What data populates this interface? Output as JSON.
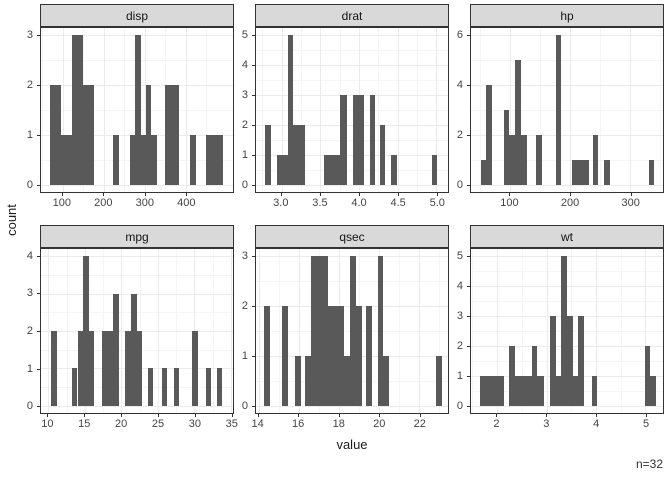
{
  "meta": {
    "ylabel": "count",
    "xlabel": "value",
    "n_label": "n=32"
  },
  "colors": {
    "bar": "#595959",
    "strip_bg": "#D9D9D9",
    "border": "#333333",
    "grid_major": "#EBEBEB",
    "grid_minor": "#F5F5F5",
    "axis_text": "#444444",
    "title_text": "#1a1a1a"
  },
  "chart_data": [
    {
      "type": "bar",
      "title": "disp",
      "xlim": [
        47.5,
        515
      ],
      "ylim": [
        -0.15,
        3.15
      ],
      "x_ticks": [
        100,
        200,
        300,
        400
      ],
      "x_tick_labels": [
        "100",
        "200",
        "300",
        "400"
      ],
      "x_minor": [
        50,
        150,
        250,
        350,
        450
      ],
      "y_ticks": [
        0,
        1,
        2,
        3
      ],
      "y_tick_labels": [
        "0",
        "1",
        "2",
        "3"
      ],
      "y_minor": [
        0.5,
        1.5,
        2.5
      ],
      "bars": [
        {
          "x0": 69,
          "x1": 96,
          "count": 2
        },
        {
          "x0": 96,
          "x1": 123,
          "count": 1
        },
        {
          "x0": 123,
          "x1": 150,
          "count": 3
        },
        {
          "x0": 150,
          "x1": 177,
          "count": 2
        },
        {
          "x0": 223,
          "x1": 237,
          "count": 1
        },
        {
          "x0": 263,
          "x1": 276,
          "count": 1
        },
        {
          "x0": 276,
          "x1": 290,
          "count": 3
        },
        {
          "x0": 290,
          "x1": 303,
          "count": 1
        },
        {
          "x0": 303,
          "x1": 316,
          "count": 2
        },
        {
          "x0": 316,
          "x1": 329,
          "count": 1
        },
        {
          "x0": 350,
          "x1": 383,
          "count": 2
        },
        {
          "x0": 411,
          "x1": 424,
          "count": 1
        },
        {
          "x0": 450,
          "x1": 490,
          "count": 1
        }
      ]
    },
    {
      "type": "bar",
      "title": "drat",
      "xlim": [
        2.67,
        5.15
      ],
      "ylim": [
        -0.25,
        5.25
      ],
      "x_ticks": [
        3.0,
        3.5,
        4.0,
        4.5,
        5.0
      ],
      "x_tick_labels": [
        "3.0",
        "3.5",
        "4.0",
        "4.5",
        "5.0"
      ],
      "x_minor": [
        2.75,
        3.25,
        3.75,
        4.25,
        4.75
      ],
      "y_ticks": [
        0,
        1,
        2,
        3,
        4,
        5
      ],
      "y_tick_labels": [
        "0",
        "1",
        "2",
        "3",
        "4",
        "5"
      ],
      "y_minor": [
        0.5,
        1.5,
        2.5,
        3.5,
        4.5
      ],
      "bars": [
        {
          "x0": 2.78,
          "x1": 2.86,
          "count": 2
        },
        {
          "x0": 2.94,
          "x1": 3.08,
          "count": 1
        },
        {
          "x0": 3.08,
          "x1": 3.15,
          "count": 5
        },
        {
          "x0": 3.15,
          "x1": 3.3,
          "count": 2
        },
        {
          "x0": 3.55,
          "x1": 3.76,
          "count": 1
        },
        {
          "x0": 3.76,
          "x1": 3.84,
          "count": 3
        },
        {
          "x0": 3.92,
          "x1": 4.07,
          "count": 3
        },
        {
          "x0": 4.14,
          "x1": 4.21,
          "count": 3
        },
        {
          "x0": 4.27,
          "x1": 4.34,
          "count": 2
        },
        {
          "x0": 4.42,
          "x1": 4.49,
          "count": 1
        },
        {
          "x0": 4.94,
          "x1": 5.01,
          "count": 1
        }
      ]
    },
    {
      "type": "bar",
      "title": "hp",
      "xlim": [
        35,
        355
      ],
      "ylim": [
        -0.3,
        6.3
      ],
      "x_ticks": [
        100,
        200,
        300
      ],
      "x_tick_labels": [
        "100",
        "200",
        "300"
      ],
      "x_minor": [
        50,
        150,
        250,
        350
      ],
      "y_ticks": [
        0,
        2,
        4,
        6
      ],
      "y_tick_labels": [
        "0",
        "2",
        "4",
        "6"
      ],
      "y_minor": [
        1,
        3,
        5
      ],
      "bars": [
        {
          "x0": 51,
          "x1": 60.5,
          "count": 1
        },
        {
          "x0": 60.5,
          "x1": 70,
          "count": 4
        },
        {
          "x0": 89.5,
          "x1": 99,
          "count": 3
        },
        {
          "x0": 99,
          "x1": 108.5,
          "count": 2
        },
        {
          "x0": 108.5,
          "x1": 118,
          "count": 5
        },
        {
          "x0": 118,
          "x1": 128,
          "count": 2
        },
        {
          "x0": 144,
          "x1": 153.5,
          "count": 2
        },
        {
          "x0": 176,
          "x1": 185.5,
          "count": 6
        },
        {
          "x0": 203,
          "x1": 231,
          "count": 1
        },
        {
          "x0": 238,
          "x1": 247.5,
          "count": 2
        },
        {
          "x0": 257,
          "x1": 266.5,
          "count": 1
        },
        {
          "x0": 331,
          "x1": 340.5,
          "count": 1
        }
      ]
    },
    {
      "type": "bar",
      "title": "mpg",
      "xlim": [
        9.0,
        35.3
      ],
      "ylim": [
        -0.2,
        4.2
      ],
      "x_ticks": [
        10,
        15,
        20,
        25,
        30,
        35
      ],
      "x_tick_labels": [
        "10",
        "15",
        "20",
        "25",
        "30",
        "35"
      ],
      "x_minor": [
        12.5,
        17.5,
        22.5,
        27.5,
        32.5
      ],
      "y_ticks": [
        0,
        1,
        2,
        3,
        4
      ],
      "y_tick_labels": [
        "0",
        "1",
        "2",
        "3",
        "4"
      ],
      "y_minor": [
        0.5,
        1.5,
        2.5,
        3.5
      ],
      "bars": [
        {
          "x0": 10.37,
          "x1": 11.14,
          "count": 2
        },
        {
          "x0": 13.23,
          "x1": 14.0,
          "count": 1
        },
        {
          "x0": 14.0,
          "x1": 14.77,
          "count": 2
        },
        {
          "x0": 14.77,
          "x1": 15.55,
          "count": 4
        },
        {
          "x0": 15.55,
          "x1": 16.32,
          "count": 2
        },
        {
          "x0": 17.3,
          "x1": 18.85,
          "count": 2
        },
        {
          "x0": 18.85,
          "x1": 19.7,
          "count": 3
        },
        {
          "x0": 20.45,
          "x1": 21.35,
          "count": 2
        },
        {
          "x0": 21.35,
          "x1": 22.1,
          "count": 3
        },
        {
          "x0": 22.1,
          "x1": 22.85,
          "count": 2
        },
        {
          "x0": 23.6,
          "x1": 24.35,
          "count": 1
        },
        {
          "x0": 25.55,
          "x1": 26.3,
          "count": 1
        },
        {
          "x0": 27.15,
          "x1": 27.9,
          "count": 1
        },
        {
          "x0": 29.7,
          "x1": 30.5,
          "count": 2
        },
        {
          "x0": 31.55,
          "x1": 32.3,
          "count": 1
        },
        {
          "x0": 33.1,
          "x1": 33.85,
          "count": 1
        }
      ]
    },
    {
      "type": "bar",
      "title": "qsec",
      "xlim": [
        13.87,
        23.44
      ],
      "ylim": [
        -0.15,
        3.15
      ],
      "x_ticks": [
        14,
        16,
        18,
        20,
        22
      ],
      "x_tick_labels": [
        "14",
        "16",
        "18",
        "20",
        "22"
      ],
      "x_minor": [
        15,
        17,
        19,
        21,
        23
      ],
      "y_ticks": [
        0,
        1,
        2,
        3
      ],
      "y_tick_labels": [
        "0",
        "1",
        "2",
        "3"
      ],
      "y_minor": [
        0.5,
        1.5,
        2.5
      ],
      "bars": [
        {
          "x0": 14.28,
          "x1": 14.57,
          "count": 2
        },
        {
          "x0": 15.16,
          "x1": 15.45,
          "count": 2
        },
        {
          "x0": 15.8,
          "x1": 16.09,
          "count": 1
        },
        {
          "x0": 16.32,
          "x1": 16.61,
          "count": 1
        },
        {
          "x0": 16.61,
          "x1": 17.48,
          "count": 3
        },
        {
          "x0": 17.48,
          "x1": 18.26,
          "count": 2
        },
        {
          "x0": 18.26,
          "x1": 18.55,
          "count": 1
        },
        {
          "x0": 18.55,
          "x1": 18.84,
          "count": 3
        },
        {
          "x0": 18.84,
          "x1": 19.13,
          "count": 2
        },
        {
          "x0": 19.35,
          "x1": 19.64,
          "count": 2
        },
        {
          "x0": 19.93,
          "x1": 20.22,
          "count": 3
        },
        {
          "x0": 20.22,
          "x1": 20.51,
          "count": 1
        },
        {
          "x0": 22.86,
          "x1": 23.15,
          "count": 1
        }
      ]
    },
    {
      "type": "bar",
      "title": "wt",
      "xlim": [
        1.47,
        5.36
      ],
      "ylim": [
        -0.25,
        5.25
      ],
      "x_ticks": [
        2,
        3,
        4,
        5
      ],
      "x_tick_labels": [
        "2",
        "3",
        "4",
        "5"
      ],
      "x_minor": [
        1.5,
        2.5,
        3.5,
        4.5
      ],
      "y_ticks": [
        0,
        1,
        2,
        3,
        4,
        5
      ],
      "y_tick_labels": [
        "0",
        "1",
        "2",
        "3",
        "4",
        "5"
      ],
      "y_minor": [
        0.5,
        1.5,
        2.5,
        3.5,
        4.5
      ],
      "bars": [
        {
          "x0": 1.66,
          "x1": 2.13,
          "count": 1
        },
        {
          "x0": 2.25,
          "x1": 2.37,
          "count": 2
        },
        {
          "x0": 2.37,
          "x1": 2.7,
          "count": 1
        },
        {
          "x0": 2.7,
          "x1": 2.81,
          "count": 2
        },
        {
          "x0": 2.81,
          "x1": 2.94,
          "count": 1
        },
        {
          "x0": 3.07,
          "x1": 3.19,
          "count": 3
        },
        {
          "x0": 3.19,
          "x1": 3.3,
          "count": 1
        },
        {
          "x0": 3.3,
          "x1": 3.42,
          "count": 5
        },
        {
          "x0": 3.42,
          "x1": 3.53,
          "count": 3
        },
        {
          "x0": 3.53,
          "x1": 3.64,
          "count": 1
        },
        {
          "x0": 3.64,
          "x1": 3.76,
          "count": 3
        },
        {
          "x0": 3.92,
          "x1": 4.03,
          "count": 1
        },
        {
          "x0": 4.99,
          "x1": 5.1,
          "count": 2
        },
        {
          "x0": 5.1,
          "x1": 5.22,
          "count": 1
        }
      ]
    }
  ]
}
